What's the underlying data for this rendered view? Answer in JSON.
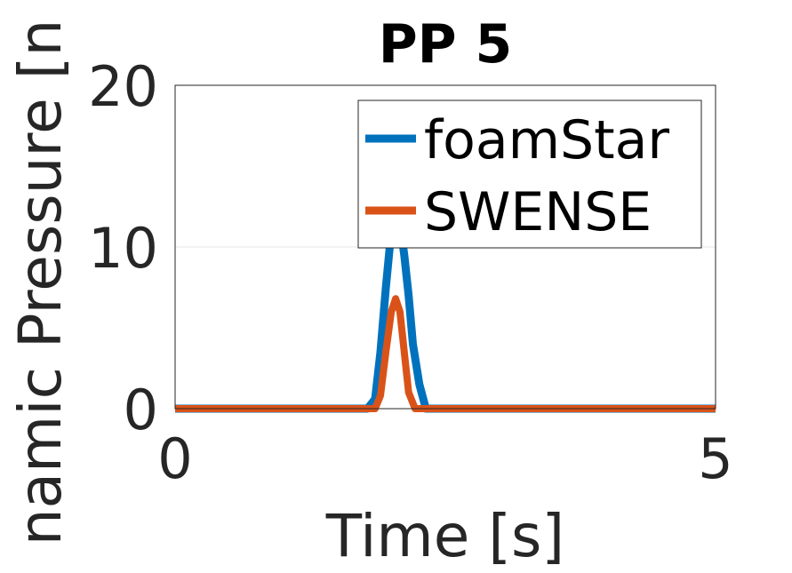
{
  "chart_data": {
    "type": "line",
    "title": "PP 5",
    "xlabel": "Time [s]",
    "ylabel": "namic Pressure [n",
    "xlim": [
      0,
      5
    ],
    "ylim": [
      0,
      20
    ],
    "xticks": [
      "0",
      "5"
    ],
    "yticks": [
      "0",
      "10",
      "20"
    ],
    "grid": "y-major",
    "legend_position": "top-right",
    "series": [
      {
        "name": "foamStar",
        "color": "#0072BD",
        "x": [
          0,
          1.5,
          1.78,
          1.85,
          1.9,
          1.95,
          2.0,
          2.04,
          2.08,
          2.12,
          2.16,
          2.2,
          2.26,
          2.32,
          3.0,
          4.0,
          5.0
        ],
        "y": [
          0,
          0,
          0,
          0.6,
          3.5,
          7.5,
          11.0,
          12.0,
          11.5,
          9.5,
          7.0,
          4.0,
          1.5,
          0,
          0,
          0,
          0
        ]
      },
      {
        "name": "SWENSE",
        "color": "#D95319",
        "x": [
          0,
          1.5,
          1.85,
          1.9,
          1.95,
          2.0,
          2.04,
          2.08,
          2.12,
          2.16,
          2.22,
          3.0,
          4.0,
          5.0
        ],
        "y": [
          0,
          0,
          0,
          0.8,
          3.5,
          6.0,
          6.8,
          6.0,
          3.5,
          1.0,
          0,
          0,
          0,
          0
        ]
      }
    ]
  }
}
